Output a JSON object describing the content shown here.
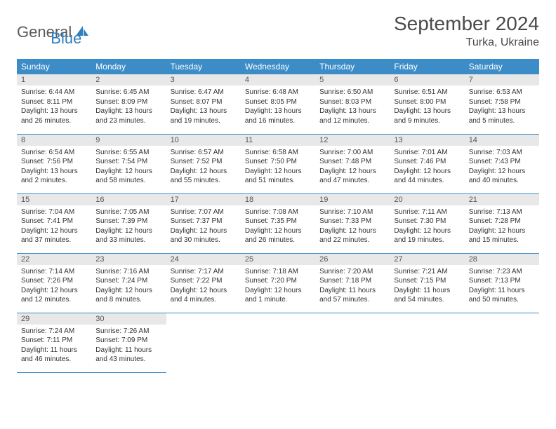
{
  "logo": {
    "text_general": "General",
    "text_blue": "Blue",
    "icon_color": "#2e7fbf"
  },
  "title": "September 2024",
  "location": "Turka, Ukraine",
  "colors": {
    "header_bg": "#3b8cc7",
    "header_text": "#ffffff",
    "daynum_bg": "#e8e8e8",
    "row_border": "#3b8cc7",
    "text": "#333333"
  },
  "weekdays": [
    "Sunday",
    "Monday",
    "Tuesday",
    "Wednesday",
    "Thursday",
    "Friday",
    "Saturday"
  ],
  "days": [
    {
      "n": 1,
      "sr": "6:44 AM",
      "ss": "8:11 PM",
      "dl": "13 hours and 26 minutes."
    },
    {
      "n": 2,
      "sr": "6:45 AM",
      "ss": "8:09 PM",
      "dl": "13 hours and 23 minutes."
    },
    {
      "n": 3,
      "sr": "6:47 AM",
      "ss": "8:07 PM",
      "dl": "13 hours and 19 minutes."
    },
    {
      "n": 4,
      "sr": "6:48 AM",
      "ss": "8:05 PM",
      "dl": "13 hours and 16 minutes."
    },
    {
      "n": 5,
      "sr": "6:50 AM",
      "ss": "8:03 PM",
      "dl": "13 hours and 12 minutes."
    },
    {
      "n": 6,
      "sr": "6:51 AM",
      "ss": "8:00 PM",
      "dl": "13 hours and 9 minutes."
    },
    {
      "n": 7,
      "sr": "6:53 AM",
      "ss": "7:58 PM",
      "dl": "13 hours and 5 minutes."
    },
    {
      "n": 8,
      "sr": "6:54 AM",
      "ss": "7:56 PM",
      "dl": "13 hours and 2 minutes."
    },
    {
      "n": 9,
      "sr": "6:55 AM",
      "ss": "7:54 PM",
      "dl": "12 hours and 58 minutes."
    },
    {
      "n": 10,
      "sr": "6:57 AM",
      "ss": "7:52 PM",
      "dl": "12 hours and 55 minutes."
    },
    {
      "n": 11,
      "sr": "6:58 AM",
      "ss": "7:50 PM",
      "dl": "12 hours and 51 minutes."
    },
    {
      "n": 12,
      "sr": "7:00 AM",
      "ss": "7:48 PM",
      "dl": "12 hours and 47 minutes."
    },
    {
      "n": 13,
      "sr": "7:01 AM",
      "ss": "7:46 PM",
      "dl": "12 hours and 44 minutes."
    },
    {
      "n": 14,
      "sr": "7:03 AM",
      "ss": "7:43 PM",
      "dl": "12 hours and 40 minutes."
    },
    {
      "n": 15,
      "sr": "7:04 AM",
      "ss": "7:41 PM",
      "dl": "12 hours and 37 minutes."
    },
    {
      "n": 16,
      "sr": "7:05 AM",
      "ss": "7:39 PM",
      "dl": "12 hours and 33 minutes."
    },
    {
      "n": 17,
      "sr": "7:07 AM",
      "ss": "7:37 PM",
      "dl": "12 hours and 30 minutes."
    },
    {
      "n": 18,
      "sr": "7:08 AM",
      "ss": "7:35 PM",
      "dl": "12 hours and 26 minutes."
    },
    {
      "n": 19,
      "sr": "7:10 AM",
      "ss": "7:33 PM",
      "dl": "12 hours and 22 minutes."
    },
    {
      "n": 20,
      "sr": "7:11 AM",
      "ss": "7:30 PM",
      "dl": "12 hours and 19 minutes."
    },
    {
      "n": 21,
      "sr": "7:13 AM",
      "ss": "7:28 PM",
      "dl": "12 hours and 15 minutes."
    },
    {
      "n": 22,
      "sr": "7:14 AM",
      "ss": "7:26 PM",
      "dl": "12 hours and 12 minutes."
    },
    {
      "n": 23,
      "sr": "7:16 AM",
      "ss": "7:24 PM",
      "dl": "12 hours and 8 minutes."
    },
    {
      "n": 24,
      "sr": "7:17 AM",
      "ss": "7:22 PM",
      "dl": "12 hours and 4 minutes."
    },
    {
      "n": 25,
      "sr": "7:18 AM",
      "ss": "7:20 PM",
      "dl": "12 hours and 1 minute."
    },
    {
      "n": 26,
      "sr": "7:20 AM",
      "ss": "7:18 PM",
      "dl": "11 hours and 57 minutes."
    },
    {
      "n": 27,
      "sr": "7:21 AM",
      "ss": "7:15 PM",
      "dl": "11 hours and 54 minutes."
    },
    {
      "n": 28,
      "sr": "7:23 AM",
      "ss": "7:13 PM",
      "dl": "11 hours and 50 minutes."
    },
    {
      "n": 29,
      "sr": "7:24 AM",
      "ss": "7:11 PM",
      "dl": "11 hours and 46 minutes."
    },
    {
      "n": 30,
      "sr": "7:26 AM",
      "ss": "7:09 PM",
      "dl": "11 hours and 43 minutes."
    }
  ],
  "labels": {
    "sunrise": "Sunrise:",
    "sunset": "Sunset:",
    "daylight": "Daylight:"
  },
  "layout": {
    "first_offset": 0,
    "cols": 7
  }
}
